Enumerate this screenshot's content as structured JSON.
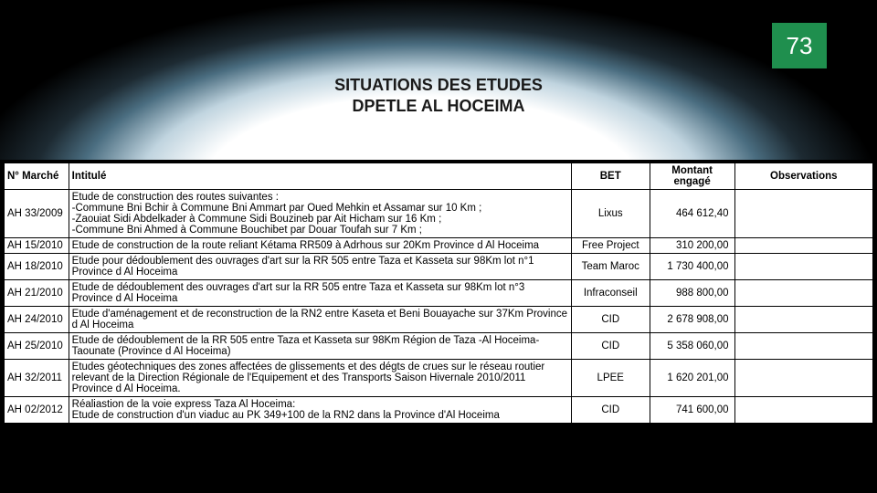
{
  "page_number": "73",
  "title_line1": "SITUATIONS DES ETUDES",
  "title_line2": "DPETLE AL HOCEIMA",
  "columns": {
    "marche": "N° Marché",
    "intitule": "Intitulé",
    "bet": "BET",
    "montant": "Montant engagé",
    "observations": "Observations"
  },
  "rows": [
    {
      "marche": "AH 33/2009",
      "intitule": "Etude de construction des routes suivantes :\n-Commune Bni Bchir à Commune Bni Ammart par Oued Mehkin et Assamar sur 10 Km ;\n-Zaouiat Sidi Abdelkader à Commune Sidi Bouzineb par Ait Hicham sur 16 Km ;\n-Commune Bni Ahmed à Commune Bouchibet par Douar Toufah sur 7 Km ;",
      "bet": "Lixus",
      "montant": "464 612,40",
      "observations": ""
    },
    {
      "marche": "AH 15/2010",
      "intitule": "Etude de construction de la route reliant Kétama RR509 à Adrhous sur 20Km Province d Al Hoceima",
      "bet": "Free Project",
      "montant": "310 200,00",
      "observations": ""
    },
    {
      "marche": "AH 18/2010",
      "intitule": "Etude pour dédoublement des ouvrages d'art sur la RR 505 entre Taza et Kasseta sur 98Km lot n°1 Province d Al Hoceima",
      "bet": "Team Maroc",
      "montant": "1 730 400,00",
      "observations": ""
    },
    {
      "marche": "AH 21/2010",
      "intitule": "Etude de dédoublement des ouvrages d'art sur la RR 505 entre Taza et Kasseta sur 98Km lot n°3 Province d Al Hoceima",
      "bet": "Infraconseil",
      "montant": "988 800,00",
      "observations": ""
    },
    {
      "marche": "AH 24/2010",
      "intitule": "Etude d'aménagement et de reconstruction de la RN2 entre Kaseta et Beni Bouayache sur 37Km Province d Al Hoceima",
      "bet": "CID",
      "montant": "2 678 908,00",
      "observations": ""
    },
    {
      "marche": "AH 25/2010",
      "intitule": "Etude de dédoublement de la RR 505 entre Taza et Kasseta sur 98Km Région de Taza -Al Hoceima-Taounate (Province d Al Hoceima)",
      "bet": "CID",
      "montant": "5 358 060,00",
      "observations": ""
    },
    {
      "marche": "AH 32/2011",
      "intitule": "Etudes géotechniques des zones affectées de glissements et des dégts de crues sur le réseau routier relevant de la Direction Régionale de l'Equipement et des Transports Saison Hivernale 2010/2011 Province d Al Hoceima.",
      "bet": "LPEE",
      "montant": "1 620 201,00",
      "observations": ""
    },
    {
      "marche": "AH 02/2012",
      "intitule": "Réaliastion de la voie express Taza Al Hoceima:\nEtude de construction d'un viaduc au PK 349+100 de la RN2 dans la Province d'Al Hoceima",
      "bet": "CID",
      "montant": "741 600,00",
      "observations": ""
    }
  ]
}
